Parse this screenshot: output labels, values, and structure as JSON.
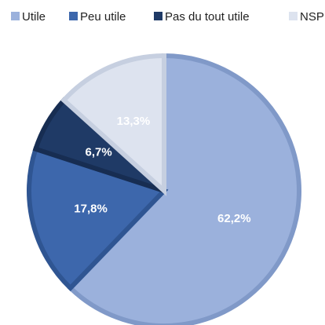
{
  "chart_data": {
    "type": "pie",
    "categories": [
      "Utile",
      "Peu utile",
      "Pas du tout utile",
      "NSP"
    ],
    "values": [
      62.2,
      17.8,
      6.7,
      13.3
    ],
    "value_labels": [
      "62,2%",
      "17,8%",
      "6,7%",
      "13,3%"
    ],
    "colors": [
      "#9bb1dc",
      "#3d67ac",
      "#1f3a66",
      "#dde3ef"
    ],
    "edge_colors": [
      "#8099c8",
      "#2f5592",
      "#172d52",
      "#c6cfe0"
    ],
    "legend": "top"
  }
}
